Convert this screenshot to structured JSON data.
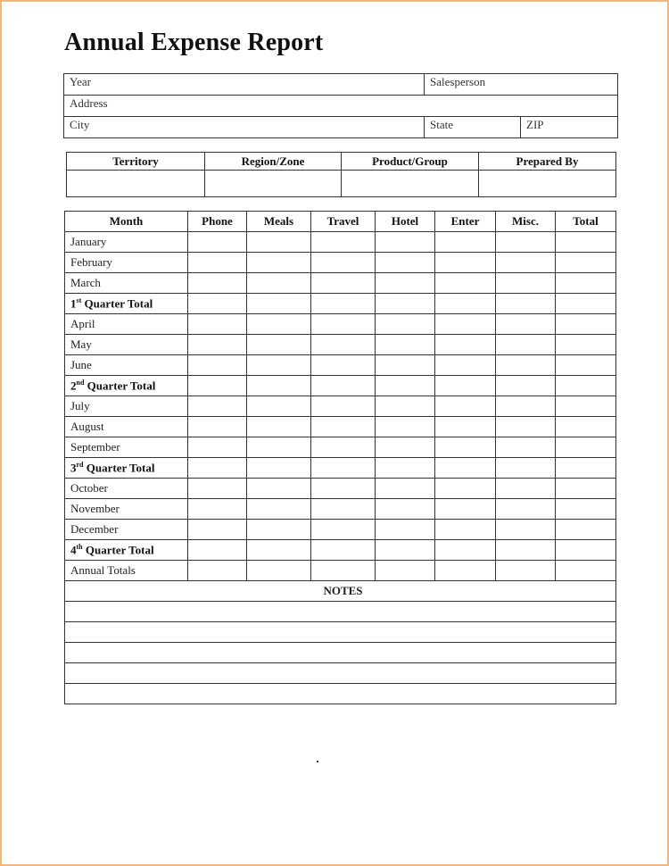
{
  "title": "Annual Expense Report",
  "info": {
    "year_label": "Year",
    "salesperson_label": "Salesperson",
    "address_label": "Address",
    "city_label": "City",
    "state_label": "State",
    "zip_label": "ZIP"
  },
  "territory_headers": [
    "Territory",
    "Region/Zone",
    "Product/Group",
    "Prepared By"
  ],
  "expense": {
    "headers": [
      "Month",
      "Phone",
      "Meals",
      "Travel",
      "Hotel",
      "Enter",
      "Misc.",
      "Total"
    ],
    "rows": [
      {
        "label": "January"
      },
      {
        "label": "February"
      },
      {
        "label": "March"
      },
      {
        "num": "1",
        "sup": "st",
        "label": " Quarter Total",
        "bold": true
      },
      {
        "label": "April"
      },
      {
        "label": "May"
      },
      {
        "label": "June"
      },
      {
        "num": "2",
        "sup": "nd",
        "label": " Quarter Total",
        "bold": true
      },
      {
        "label": "July"
      },
      {
        "label": "August"
      },
      {
        "label": "September"
      },
      {
        "num": "3",
        "sup": "rd",
        "label": " Quarter Total",
        "bold": true
      },
      {
        "label": "October"
      },
      {
        "label": "November"
      },
      {
        "label": "December"
      },
      {
        "num": "4",
        "sup": "th",
        "label": " Quarter Total",
        "bold": true
      },
      {
        "label": "Annual Totals"
      }
    ],
    "notes_label": "NOTES",
    "notes_lines": 5
  },
  "colors": {
    "page_border": "#f2b77a",
    "grid": "#333333"
  }
}
